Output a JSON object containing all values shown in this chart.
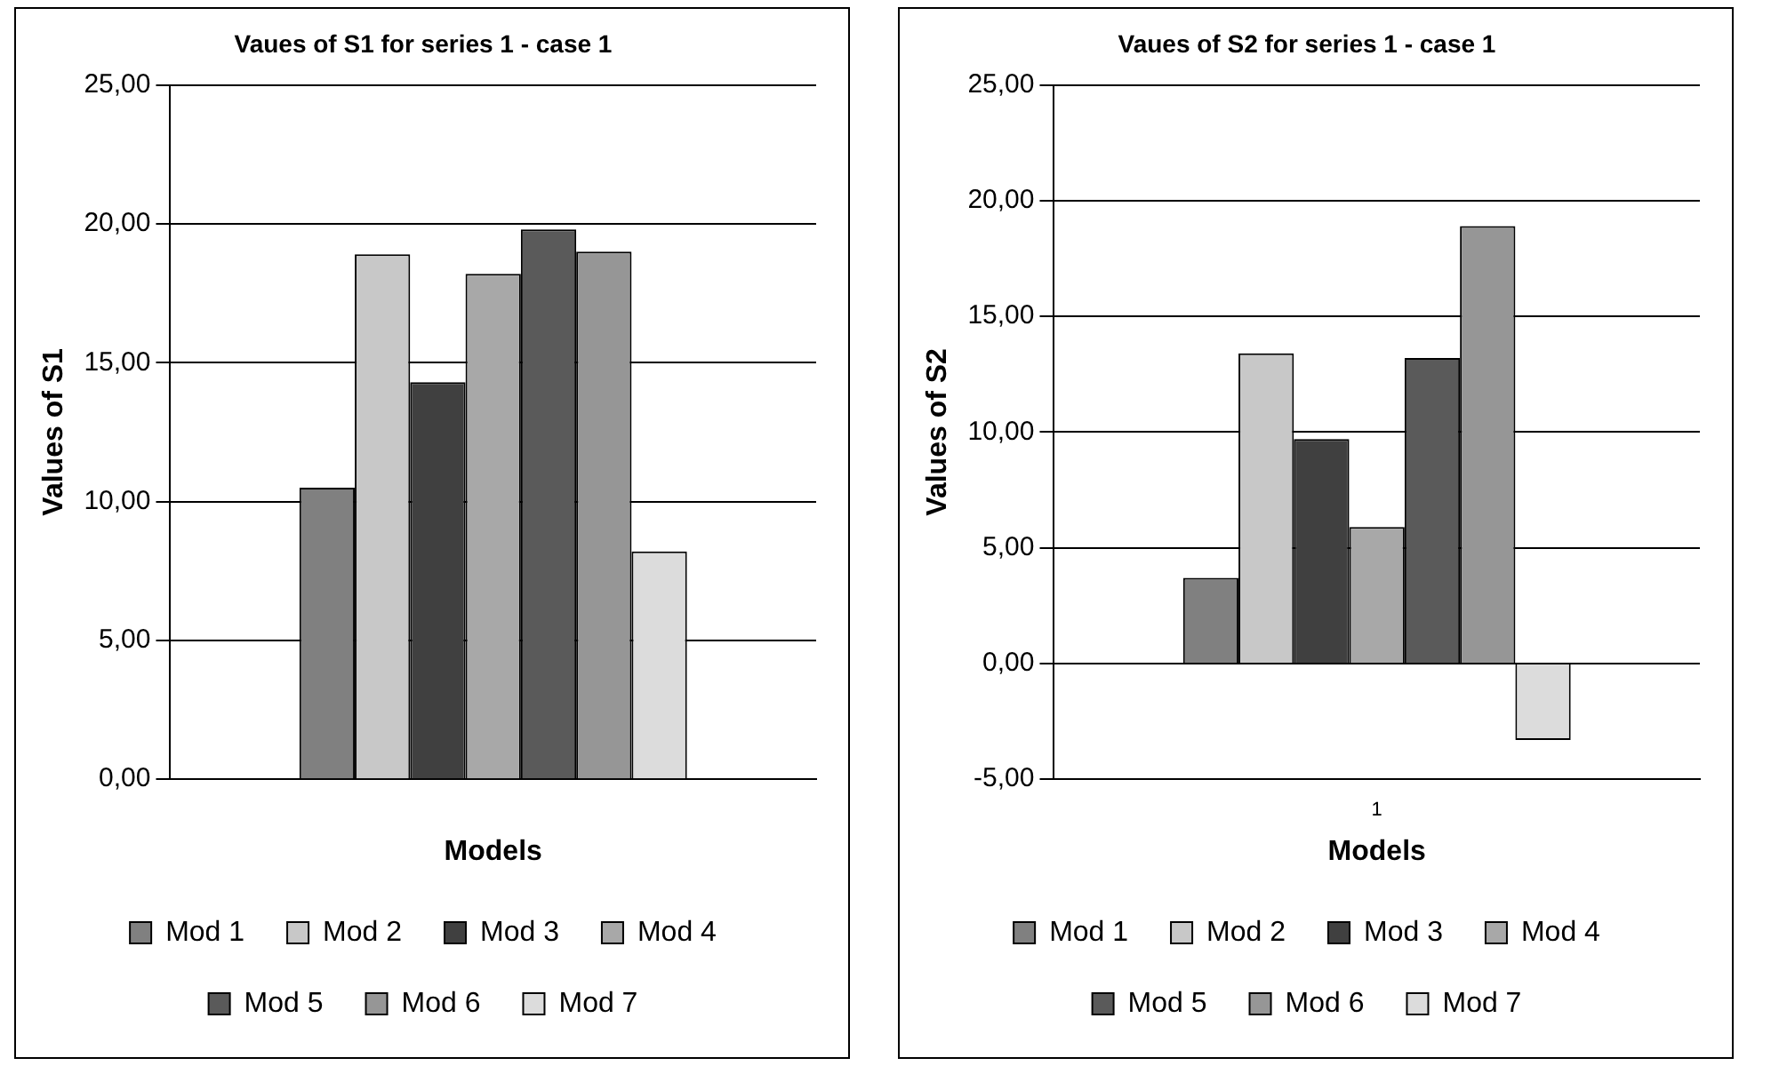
{
  "chart_data": [
    {
      "type": "bar",
      "title": "Vaues of S1 for series 1 - case 1",
      "xlabel": "Models",
      "ylabel": "Values of S1",
      "categories": [
        null
      ],
      "series": [
        {
          "name": "Mod 1",
          "color": "#808080",
          "values": [
            10.5
          ]
        },
        {
          "name": "Mod 2",
          "color": "#c8c8c8",
          "values": [
            18.9
          ]
        },
        {
          "name": "Mod 3",
          "color": "#404040",
          "values": [
            14.3
          ]
        },
        {
          "name": "Mod 4",
          "color": "#a8a8a8",
          "values": [
            18.2
          ]
        },
        {
          "name": "Mod 5",
          "color": "#5a5a5a",
          "values": [
            19.8
          ]
        },
        {
          "name": "Mod 6",
          "color": "#969696",
          "values": [
            19.0
          ]
        },
        {
          "name": "Mod 7",
          "color": "#dcdcdc",
          "values": [
            8.2
          ]
        }
      ],
      "ylim": [
        0,
        25
      ],
      "yticks": [
        {
          "value": 0,
          "label": "0,00"
        },
        {
          "value": 5,
          "label": "5,00"
        },
        {
          "value": 10,
          "label": "10,00"
        },
        {
          "value": 15,
          "label": "15,00"
        },
        {
          "value": 20,
          "label": "20,00"
        },
        {
          "value": 25,
          "label": "25,00"
        }
      ],
      "grid": "y",
      "legend": "bottom"
    },
    {
      "type": "bar",
      "title": "Vaues of S2 for series 1 - case 1",
      "xlabel": "Models",
      "ylabel": "Values of S2",
      "categories": [
        "1"
      ],
      "series": [
        {
          "name": "Mod 1",
          "color": "#808080",
          "values": [
            3.7
          ]
        },
        {
          "name": "Mod 2",
          "color": "#c8c8c8",
          "values": [
            13.4
          ]
        },
        {
          "name": "Mod 3",
          "color": "#404040",
          "values": [
            9.7
          ]
        },
        {
          "name": "Mod 4",
          "color": "#a8a8a8",
          "values": [
            5.9
          ]
        },
        {
          "name": "Mod 5",
          "color": "#5a5a5a",
          "values": [
            13.2
          ]
        },
        {
          "name": "Mod 6",
          "color": "#969696",
          "values": [
            18.9
          ]
        },
        {
          "name": "Mod 7",
          "color": "#dcdcdc",
          "values": [
            -3.3
          ]
        }
      ],
      "ylim": [
        -5,
        25
      ],
      "yticks": [
        {
          "value": -5,
          "label": "-5,00"
        },
        {
          "value": 0,
          "label": "0,00"
        },
        {
          "value": 5,
          "label": "5,00"
        },
        {
          "value": 10,
          "label": "10,00"
        },
        {
          "value": 15,
          "label": "15,00"
        },
        {
          "value": 20,
          "label": "20,00"
        },
        {
          "value": 25,
          "label": "25,00"
        }
      ],
      "grid": "y",
      "legend": "bottom"
    }
  ]
}
